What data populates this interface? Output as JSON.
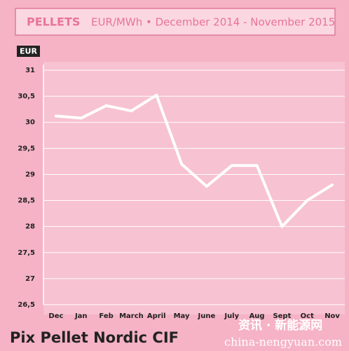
{
  "chart_data": {
    "type": "line",
    "title": "PELLETS",
    "subtitle": "EUR/MWh • December 2014 - November 2015",
    "y_label": "EUR",
    "footer": "Pix Pellet Nordic CIF",
    "watermark": [
      "资讯 · 新能源网",
      "china-nengyuan.com"
    ],
    "categories": [
      "Dec",
      "Jan",
      "Feb",
      "March",
      "April",
      "May",
      "June",
      "July",
      "Aug",
      "Sept",
      "Oct",
      "Nov"
    ],
    "values": [
      30.12,
      30.08,
      30.32,
      30.22,
      30.52,
      29.2,
      28.77,
      29.17,
      29.17,
      28.0,
      28.5,
      28.8
    ],
    "color": "#ffffff",
    "ylim": [
      26.5,
      31
    ],
    "yticks": [
      {
        "value": 26.5,
        "label": "26,5"
      },
      27,
      {
        "value": 27.5,
        "label": "27,5"
      },
      28,
      {
        "value": 28.5,
        "label": "28,5"
      },
      29,
      {
        "value": 29.5,
        "label": "29,5"
      },
      30,
      {
        "value": 30.5,
        "label": "30,5"
      },
      31
    ],
    "grid": true
  }
}
